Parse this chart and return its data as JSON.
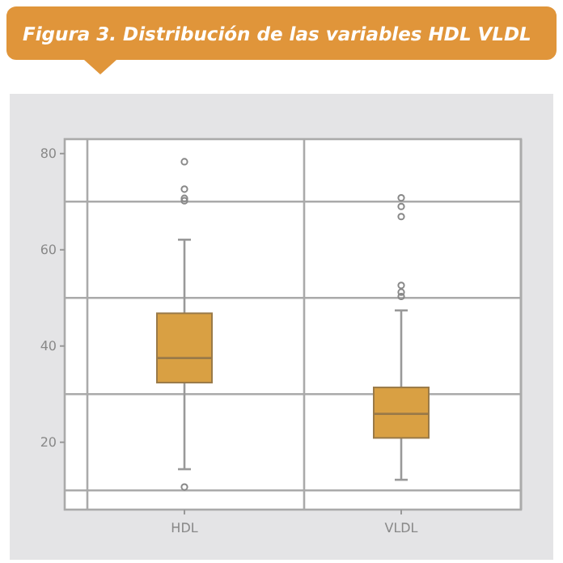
{
  "chart_data": {
    "type": "box",
    "title": "Figura 3. Distribución de las variables HDL VLDL",
    "categories": [
      "HDL",
      "VLDL"
    ],
    "color": "#d9a043",
    "boxes": [
      {
        "low": 14.4,
        "q1": 32.4,
        "median": 37.5,
        "q3": 46.8,
        "high": 62.1,
        "outliers": [
          10.7,
          70.2,
          70.7,
          72.6,
          78.3
        ]
      },
      {
        "low": 12.2,
        "q1": 20.9,
        "median": 25.9,
        "q3": 31.4,
        "high": 47.4,
        "outliers": [
          50.3,
          51.2,
          52.6,
          66.9,
          69,
          70.8
        ]
      }
    ],
    "ylim": [
      6,
      83
    ],
    "yticks": [
      {
        "value": 10,
        "label": null
      },
      20,
      {
        "value": 30,
        "label": null
      },
      40,
      {
        "value": 50,
        "label": null
      },
      60,
      {
        "value": 70,
        "label": null
      },
      80
    ],
    "grid": true
  }
}
